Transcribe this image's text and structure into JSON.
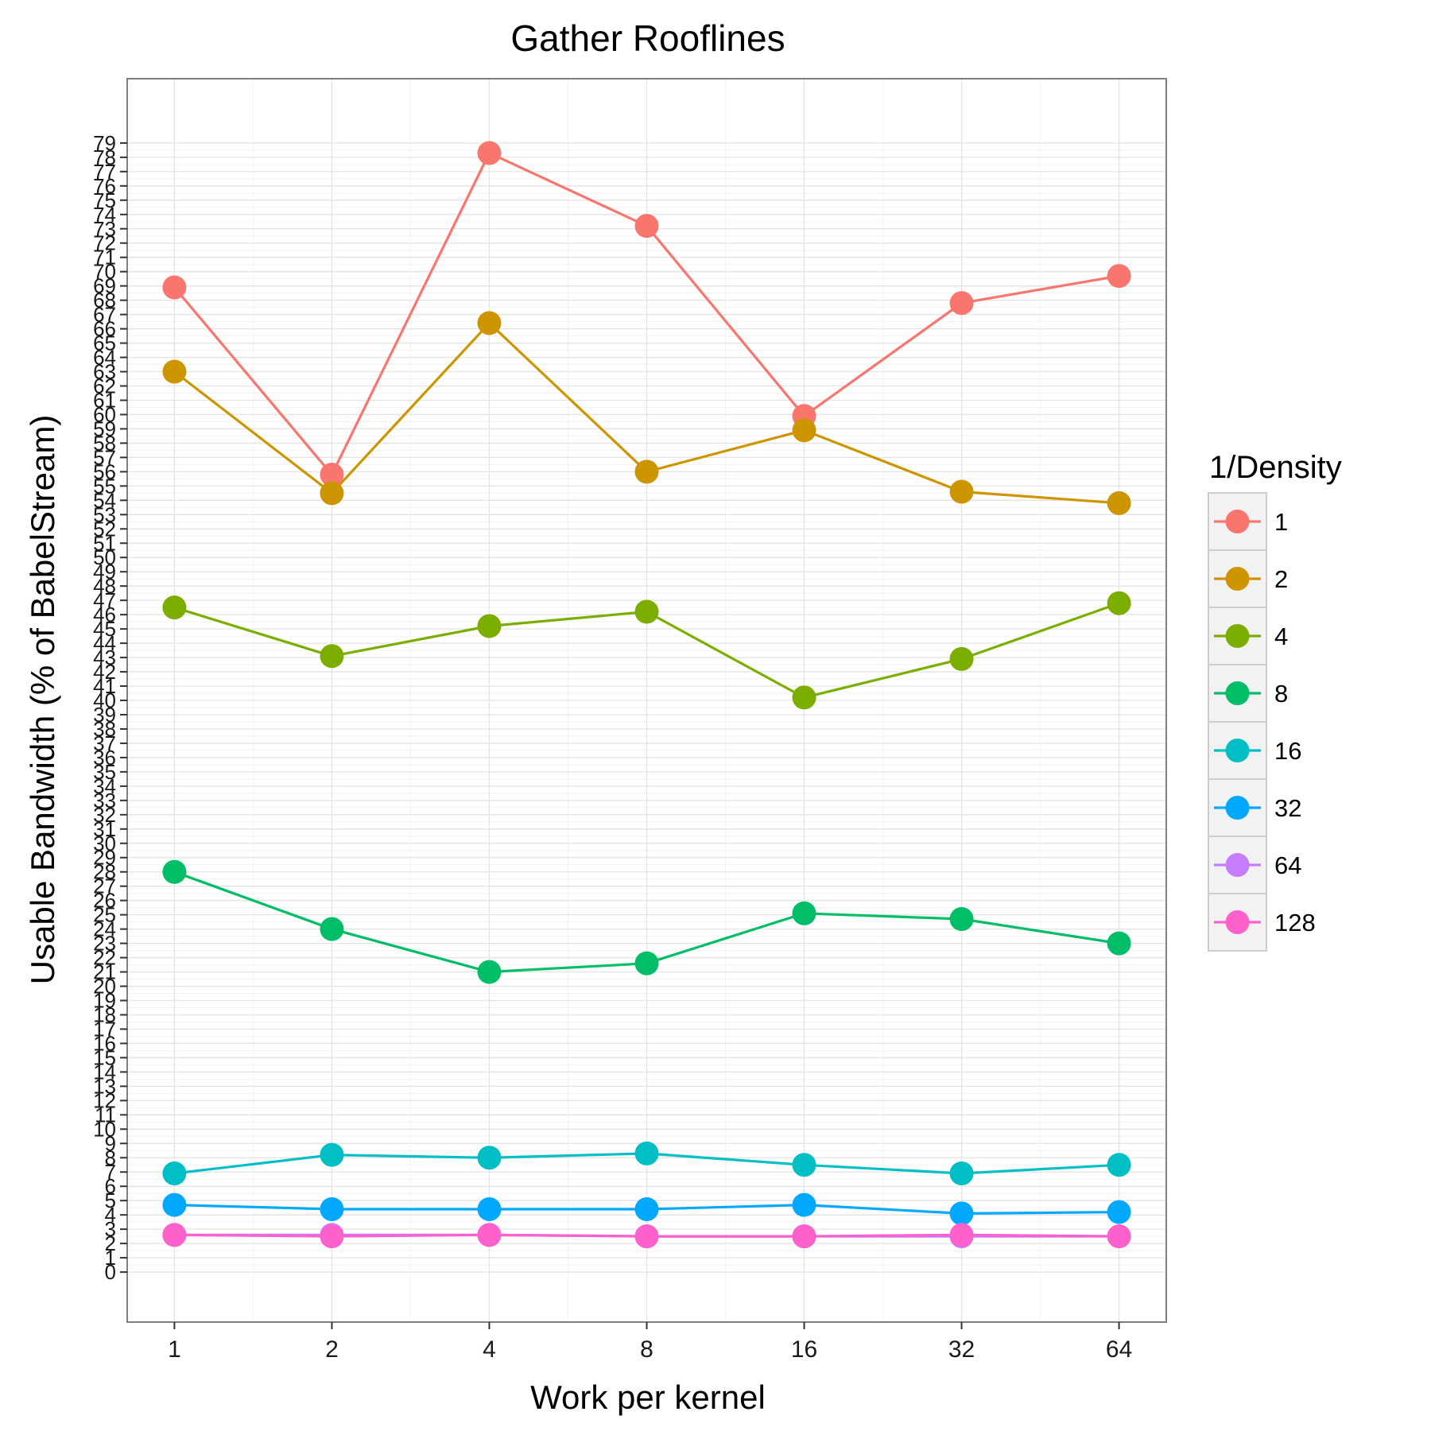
{
  "chart_data": {
    "type": "line",
    "title": "Gather Rooflines",
    "xlabel": "Work per kernel",
    "ylabel": "Usable Bandwidth (% of BabelStream)",
    "x_scale": "log2",
    "x": [
      1,
      2,
      4,
      8,
      16,
      32,
      64
    ],
    "x_tick_labels": [
      "1",
      "2",
      "4",
      "8",
      "16",
      "32",
      "64"
    ],
    "y_ticks": [
      0,
      1,
      2,
      3,
      4,
      5,
      6,
      7,
      8,
      9,
      10,
      11,
      12,
      13,
      14,
      15,
      16,
      17,
      18,
      19,
      20,
      21,
      22,
      23,
      24,
      25,
      26,
      27,
      28,
      29,
      30,
      31,
      32,
      33,
      34,
      35,
      36,
      37,
      38,
      39,
      40,
      41,
      42,
      43,
      44,
      45,
      46,
      47,
      48,
      49,
      50,
      51,
      52,
      53,
      54,
      55,
      56,
      57,
      58,
      59,
      60,
      61,
      62,
      63,
      64,
      65,
      66,
      67,
      68,
      69,
      70,
      71,
      72,
      73,
      74,
      75,
      76,
      77,
      78,
      79
    ],
    "ylim": [
      -3.5,
      83.5
    ],
    "grid": true,
    "legend": {
      "title": "1/Density",
      "position": "right"
    },
    "series": [
      {
        "name": "1",
        "color": "#F8766D",
        "values": [
          68.9,
          55.8,
          78.3,
          73.2,
          59.9,
          67.8,
          69.7
        ]
      },
      {
        "name": "2",
        "color": "#CD9600",
        "values": [
          63.0,
          54.5,
          66.4,
          56.0,
          58.9,
          54.6,
          53.8
        ]
      },
      {
        "name": "4",
        "color": "#7CAE00",
        "values": [
          46.5,
          43.1,
          45.2,
          46.2,
          40.2,
          42.9,
          46.8
        ]
      },
      {
        "name": "8",
        "color": "#00BE67",
        "values": [
          28.0,
          24.0,
          21.0,
          21.6,
          25.1,
          24.7,
          23.0
        ]
      },
      {
        "name": "16",
        "color": "#00BFC4",
        "values": [
          6.9,
          8.2,
          8.0,
          8.3,
          7.5,
          6.9,
          7.5
        ]
      },
      {
        "name": "32",
        "color": "#00A9FF",
        "values": [
          4.7,
          4.4,
          4.4,
          4.4,
          4.7,
          4.1,
          4.2
        ]
      },
      {
        "name": "64",
        "color": "#C77CFF",
        "values": [
          2.6,
          2.6,
          2.6,
          2.5,
          2.5,
          2.5,
          2.5
        ]
      },
      {
        "name": "128",
        "color": "#FF61CC",
        "values": [
          2.6,
          2.5,
          2.6,
          2.5,
          2.5,
          2.6,
          2.5
        ]
      }
    ]
  }
}
